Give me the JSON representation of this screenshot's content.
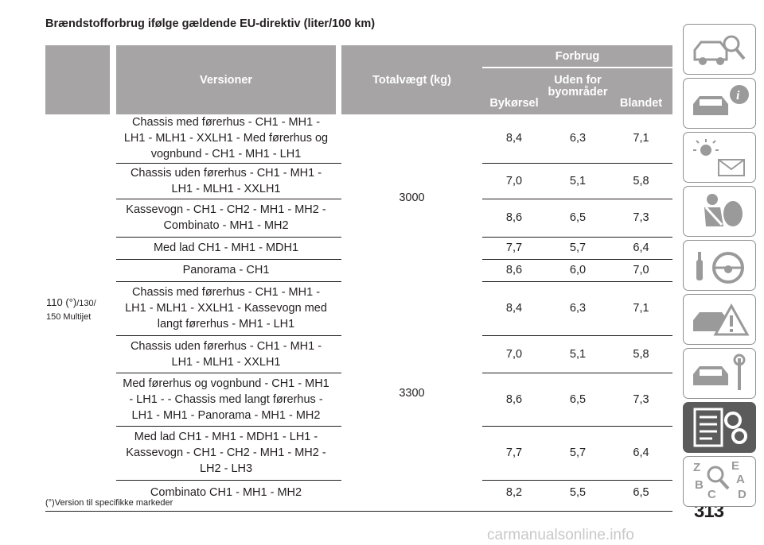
{
  "title": "Brændstofforbrug ifølge gældende EU-direktiv (liter/100 km)",
  "headers": {
    "versions": "Versioner",
    "weight": "Totalvægt (kg)",
    "consumption": "Forbrug",
    "city": "Bykørsel",
    "extra_line1": "Uden for",
    "extra_line2": "byområder",
    "mixed": "Blandet"
  },
  "model": {
    "line1": "110 (°)",
    "line1b": "/130/",
    "line2": "150 Multijet"
  },
  "groups": [
    {
      "weight": "3000",
      "rows": [
        {
          "lines": [
            "Chassis med førerhus - CH1 - MH1 -",
            "LH1 - MLH1 - XXLH1 - Med førerhus og",
            "vognbund - CH1 - MH1 - LH1"
          ],
          "city": "8,4",
          "extra": "6,3",
          "mixed": "7,1"
        },
        {
          "lines": [
            "Chassis uden førerhus - CH1 - MH1 -",
            "LH1 - MLH1 - XXLH1"
          ],
          "city": "7,0",
          "extra": "5,1",
          "mixed": "5,8"
        },
        {
          "lines": [
            "Kassevogn - CH1 - CH2 - MH1 - MH2 -",
            "Combinato - MH1 - MH2"
          ],
          "city": "8,6",
          "extra": "6,5",
          "mixed": "7,3"
        },
        {
          "lines": [
            "Med lad CH1 - MH1 - MDH1"
          ],
          "city": "7,7",
          "extra": "5,7",
          "mixed": "6,4"
        },
        {
          "lines": [
            "Panorama - CH1"
          ],
          "city": "8,6",
          "extra": "6,0",
          "mixed": "7,0"
        }
      ]
    },
    {
      "weight": "3300",
      "rows": [
        {
          "lines": [
            "Chassis med førerhus - CH1 - MH1 -",
            "LH1 - MLH1 - XXLH1 - Kassevogn med",
            "langt førerhus - MH1 - LH1"
          ],
          "city": "8,4",
          "extra": "6,3",
          "mixed": "7,1"
        },
        {
          "lines": [
            "Chassis uden førerhus - CH1 - MH1 -",
            "LH1 - MLH1 - XXLH1"
          ],
          "city": "7,0",
          "extra": "5,1",
          "mixed": "5,8"
        },
        {
          "lines": [
            "Med førerhus og vognbund - CH1 - MH1",
            "- LH1 - - Chassis med langt førerhus -",
            "LH1 - MH1 - Panorama - MH1 - MH2"
          ],
          "city": "8,6",
          "extra": "6,5",
          "mixed": "7,3"
        },
        {
          "lines": [
            "Med lad CH1 - MH1 - MDH1 - LH1 -",
            "Kassevogn - CH1 - CH2 - MH1 - MH2 -",
            "LH2 - LH3"
          ],
          "city": "7,7",
          "extra": "5,7",
          "mixed": "6,4"
        },
        {
          "lines": [
            "Combinato CH1 - MH1 - MH2"
          ],
          "city": "8,2",
          "extra": "5,5",
          "mixed": "6,5"
        }
      ]
    }
  ],
  "footnote": "(°)Version til specifikke markeder",
  "page_number": "313",
  "watermark": "carmanualsonline.info",
  "sidebar": [
    {
      "icon": "car-search-icon",
      "active": false
    },
    {
      "icon": "car-info-icon",
      "active": false
    },
    {
      "icon": "light-message-icon",
      "active": false
    },
    {
      "icon": "seatbelt-airbag-icon",
      "active": false
    },
    {
      "icon": "steering-wheel-icon",
      "active": false
    },
    {
      "icon": "car-warning-icon",
      "active": false
    },
    {
      "icon": "car-maintenance-icon",
      "active": false
    },
    {
      "icon": "technical-data-icon",
      "active": true
    },
    {
      "icon": "index-icon",
      "active": false
    }
  ]
}
